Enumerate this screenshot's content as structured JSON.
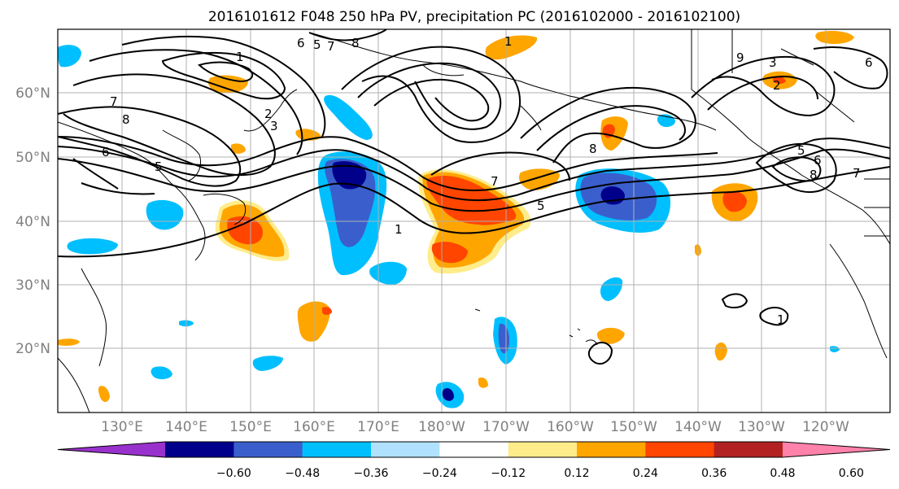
{
  "title": "2016101612 F048 250 hPa PV, precipitation PC (2016102000 - 2016102100)",
  "map": {
    "lat_labels": [
      "60°N",
      "50°N",
      "40°N",
      "30°N",
      "20°N"
    ],
    "lon_labels": [
      "130°E",
      "140°E",
      "150°E",
      "160°E",
      "170°E",
      "180°W",
      "170°W",
      "160°W",
      "150°W",
      "140°W",
      "130°W",
      "120°W"
    ]
  },
  "colorbar": {
    "tick_labels": [
      "−0.60",
      "−0.48",
      "−0.36",
      "−0.24",
      "−0.12",
      "0.12",
      "0.24",
      "0.36",
      "0.48",
      "0.60"
    ],
    "colors": [
      "#9932cc",
      "#00008b",
      "#3a5fcd",
      "#00bfff",
      "#b0e2ff",
      "#ffffff",
      "#ffec8b",
      "#ffa500",
      "#ff4500",
      "#b22222",
      "#ff82ab"
    ]
  },
  "contour_labels": [
    "1",
    "1",
    "1",
    "1",
    "2",
    "2",
    "3",
    "3",
    "5",
    "5",
    "5",
    "5",
    "6",
    "6",
    "6",
    "6",
    "7",
    "7",
    "7",
    "7",
    "8",
    "8",
    "8",
    "8",
    "9"
  ]
}
